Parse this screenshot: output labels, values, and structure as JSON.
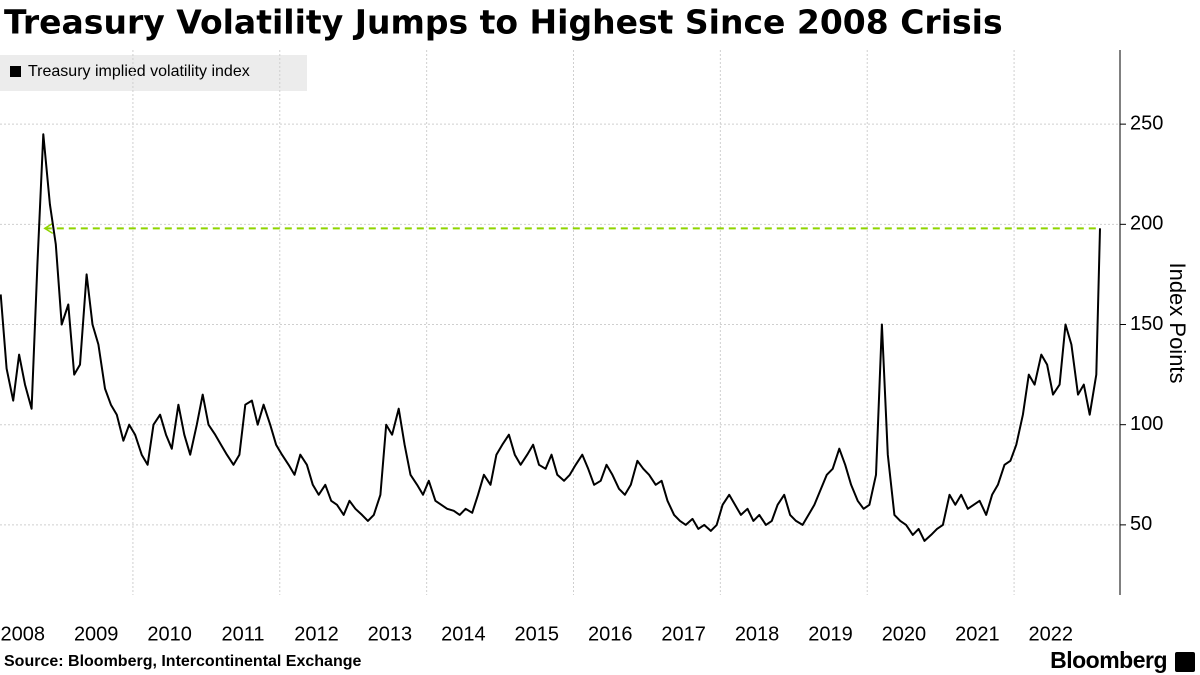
{
  "chart_data": {
    "type": "line",
    "title": "Treasury Volatility Jumps to Highest Since 2008 Crisis",
    "ylabel": "Index Points",
    "source": "Source:  Bloomberg, Intercontinental Exchange",
    "brand": "Bloomberg",
    "xlim": [
      2008.19,
      2023.17
    ],
    "ylim": [
      15,
      287
    ],
    "yticks": [
      50,
      100,
      150,
      200,
      250
    ],
    "xticks": [
      {
        "value": 2008.5,
        "label": "2008"
      },
      {
        "value": 2009.5,
        "label": "2009"
      },
      {
        "value": 2010.5,
        "label": "2010"
      },
      {
        "value": 2011.5,
        "label": "2011"
      },
      {
        "value": 2012.5,
        "label": "2012"
      },
      {
        "value": 2013.5,
        "label": "2013"
      },
      {
        "value": 2014.5,
        "label": "2014"
      },
      {
        "value": 2015.5,
        "label": "2015"
      },
      {
        "value": 2016.5,
        "label": "2016"
      },
      {
        "value": 2017.5,
        "label": "2017"
      },
      {
        "value": 2018.5,
        "label": "2018"
      },
      {
        "value": 2019.5,
        "label": "2019"
      },
      {
        "value": 2020.5,
        "label": "2020"
      },
      {
        "value": 2021.5,
        "label": "2021"
      },
      {
        "value": 2022.5,
        "label": "2022"
      }
    ],
    "xgrid": [
      2010,
      2012,
      2014,
      2016,
      2018,
      2020,
      2022
    ],
    "grid": true,
    "reference": {
      "value": 198,
      "from": 2008.8,
      "color": "#8fd400"
    },
    "x": [
      2008.2,
      2008.28,
      2008.37,
      2008.45,
      2008.53,
      2008.62,
      2008.7,
      2008.78,
      2008.87,
      2008.95,
      2009.03,
      2009.12,
      2009.2,
      2009.28,
      2009.37,
      2009.45,
      2009.53,
      2009.62,
      2009.7,
      2009.78,
      2009.87,
      2009.95,
      2010.03,
      2010.12,
      2010.2,
      2010.28,
      2010.37,
      2010.45,
      2010.53,
      2010.62,
      2010.7,
      2010.78,
      2010.87,
      2010.95,
      2011.03,
      2011.12,
      2011.2,
      2011.28,
      2011.37,
      2011.45,
      2011.53,
      2011.62,
      2011.7,
      2011.78,
      2011.87,
      2011.95,
      2012.03,
      2012.12,
      2012.2,
      2012.28,
      2012.37,
      2012.45,
      2012.53,
      2012.62,
      2012.7,
      2012.78,
      2012.87,
      2012.95,
      2013.03,
      2013.12,
      2013.2,
      2013.28,
      2013.37,
      2013.45,
      2013.53,
      2013.62,
      2013.7,
      2013.78,
      2013.87,
      2013.95,
      2014.03,
      2014.12,
      2014.2,
      2014.28,
      2014.37,
      2014.45,
      2014.53,
      2014.62,
      2014.7,
      2014.78,
      2014.87,
      2014.95,
      2015.03,
      2015.12,
      2015.2,
      2015.28,
      2015.37,
      2015.45,
      2015.53,
      2015.62,
      2015.7,
      2015.78,
      2015.87,
      2015.95,
      2016.03,
      2016.12,
      2016.2,
      2016.28,
      2016.37,
      2016.45,
      2016.53,
      2016.62,
      2016.7,
      2016.78,
      2016.87,
      2016.95,
      2017.03,
      2017.12,
      2017.2,
      2017.28,
      2017.37,
      2017.45,
      2017.53,
      2017.62,
      2017.7,
      2017.78,
      2017.87,
      2017.95,
      2018.03,
      2018.12,
      2018.2,
      2018.28,
      2018.37,
      2018.45,
      2018.53,
      2018.62,
      2018.7,
      2018.78,
      2018.87,
      2018.95,
      2019.03,
      2019.12,
      2019.2,
      2019.28,
      2019.37,
      2019.45,
      2019.53,
      2019.62,
      2019.7,
      2019.78,
      2019.87,
      2019.95,
      2020.03,
      2020.12,
      2020.2,
      2020.28,
      2020.37,
      2020.45,
      2020.53,
      2020.62,
      2020.7,
      2020.78,
      2020.87,
      2020.95,
      2021.03,
      2021.12,
      2021.2,
      2021.28,
      2021.37,
      2021.45,
      2021.53,
      2021.62,
      2021.7,
      2021.78,
      2021.87,
      2021.95,
      2022.03,
      2022.12,
      2022.2,
      2022.28,
      2022.37,
      2022.45,
      2022.53,
      2022.62,
      2022.7,
      2022.78,
      2022.87,
      2022.95,
      2023.03,
      2023.12,
      2023.17
    ],
    "series": [
      {
        "name": "Treasury implied volatility index",
        "color": "#000000",
        "values": [
          165,
          128,
          112,
          135,
          120,
          108,
          180,
          245,
          210,
          190,
          150,
          160,
          125,
          130,
          175,
          150,
          140,
          118,
          110,
          105,
          92,
          100,
          95,
          85,
          80,
          100,
          105,
          95,
          88,
          110,
          95,
          85,
          100,
          115,
          100,
          95,
          90,
          85,
          80,
          85,
          110,
          112,
          100,
          110,
          100,
          90,
          85,
          80,
          75,
          85,
          80,
          70,
          65,
          70,
          62,
          60,
          55,
          62,
          58,
          55,
          52,
          55,
          65,
          100,
          95,
          108,
          90,
          75,
          70,
          65,
          72,
          62,
          60,
          58,
          57,
          55,
          58,
          56,
          65,
          75,
          70,
          85,
          90,
          95,
          85,
          80,
          85,
          90,
          80,
          78,
          85,
          75,
          72,
          75,
          80,
          85,
          78,
          70,
          72,
          80,
          75,
          68,
          65,
          70,
          82,
          78,
          75,
          70,
          72,
          62,
          55,
          52,
          50,
          53,
          48,
          50,
          47,
          50,
          60,
          65,
          60,
          55,
          58,
          52,
          55,
          50,
          52,
          60,
          65,
          55,
          52,
          50,
          55,
          60,
          68,
          75,
          78,
          88,
          80,
          70,
          62,
          58,
          60,
          75,
          150,
          85,
          55,
          52,
          50,
          45,
          48,
          42,
          45,
          48,
          50,
          65,
          60,
          65,
          58,
          60,
          62,
          55,
          65,
          70,
          80,
          82,
          90,
          105,
          125,
          120,
          135,
          130,
          115,
          120,
          150,
          140,
          115,
          120,
          105,
          125,
          198
        ]
      }
    ]
  }
}
